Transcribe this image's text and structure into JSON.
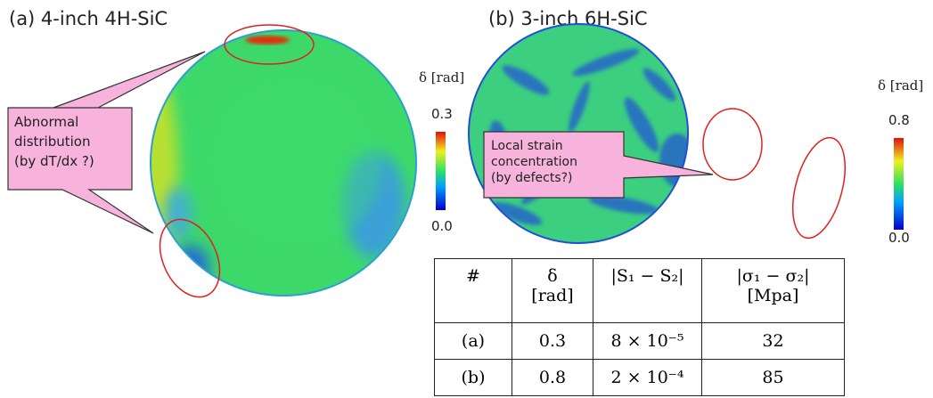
{
  "panel_a": {
    "title": "(a) 4-inch 4H-SiC",
    "colorbar": {
      "label": "δ [rad]",
      "max": "0.3",
      "min": "0.0"
    },
    "callout": [
      "Abnormal",
      "distribution",
      "(by dT/dx ?)"
    ]
  },
  "panel_b": {
    "title": "(b) 3-inch 6H-SiC",
    "colorbar": {
      "label": "δ [rad]",
      "max": "0.8",
      "min": "0.0"
    },
    "callout": [
      "Local strain",
      "concentration",
      "(by defects?)"
    ]
  },
  "table": {
    "header": [
      "#",
      [
        "δ",
        "[rad]"
      ],
      [
        "|S₁ − S₂|"
      ],
      [
        "|σ₁ − σ₂|",
        "[Mpa]"
      ]
    ],
    "rows": [
      [
        "(a)",
        "0.3",
        "8 × 10⁻⁵",
        "32"
      ],
      [
        "(b)",
        "0.8",
        "2 × 10⁻⁴",
        "85"
      ]
    ]
  }
}
